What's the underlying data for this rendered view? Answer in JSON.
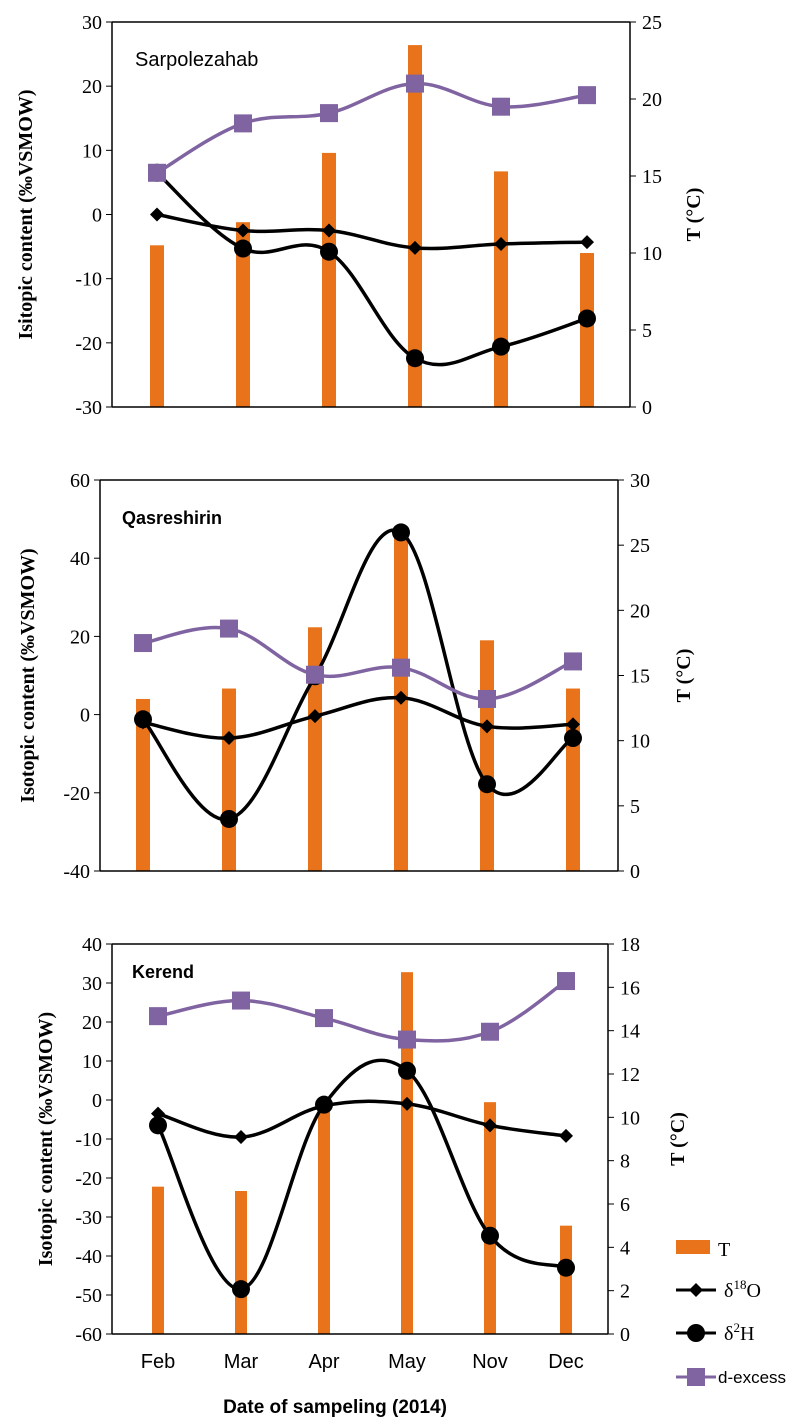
{
  "chart_data": [
    {
      "type": "bar",
      "title": "Sarpolezahab",
      "ylabel": "Isitopic content (‰VSMOW)",
      "y2label": "T (°C)",
      "categories": [
        "Feb",
        "Mar",
        "Apr",
        "May",
        "Nov",
        "Dec"
      ],
      "ylim": [
        -30,
        30
      ],
      "yticks": [
        -30,
        -20,
        -10,
        0,
        10,
        20,
        30
      ],
      "y2lim": [
        0,
        25
      ],
      "y2ticks": [
        0,
        5,
        10,
        15,
        20,
        25
      ],
      "series": [
        {
          "name": "T",
          "type": "bar",
          "axis": "right",
          "color": "#E8731A",
          "values": [
            10.5,
            12,
            16.5,
            23.5,
            15.3,
            10
          ]
        },
        {
          "name": "δ18O",
          "type": "line",
          "axis": "left",
          "marker": "diamond",
          "color": "#000000",
          "values": [
            0,
            -2.5,
            -2.5,
            -5.2,
            -4.6,
            -4.3
          ]
        },
        {
          "name": "δ2H",
          "type": "line",
          "axis": "left",
          "marker": "circle",
          "color": "#000000",
          "values": [
            6.5,
            -5.3,
            -5.8,
            -22.4,
            -20.6,
            -16.2
          ]
        },
        {
          "name": "d-excess",
          "type": "line",
          "axis": "left",
          "marker": "square",
          "color": "#8064A2",
          "values": [
            6.5,
            14.2,
            15.8,
            20.4,
            16.8,
            18.6
          ]
        }
      ]
    },
    {
      "type": "bar",
      "title": "Qasreshirin",
      "ylabel": "Isotopic content (‰VSMOW)",
      "y2label": "T (°C)",
      "categories": [
        "Feb",
        "Mar",
        "Apr",
        "May",
        "Nov",
        "Dec"
      ],
      "ylim": [
        -40,
        60
      ],
      "yticks": [
        -40,
        -20,
        0,
        20,
        40,
        60
      ],
      "y2lim": [
        0,
        30
      ],
      "y2ticks": [
        0,
        5,
        10,
        15,
        20,
        25,
        30
      ],
      "series": [
        {
          "name": "T",
          "type": "bar",
          "axis": "right",
          "color": "#E8731A",
          "values": [
            13.2,
            14,
            18.7,
            26,
            17.7,
            14
          ]
        },
        {
          "name": "δ18O",
          "type": "line",
          "axis": "left",
          "marker": "diamond",
          "color": "#000000",
          "values": [
            -2,
            -6,
            -0.4,
            4.3,
            -3,
            -2.5
          ]
        },
        {
          "name": "δ2H",
          "type": "line",
          "axis": "left",
          "marker": "circle",
          "color": "#000000",
          "values": [
            -1.2,
            -26.7,
            9.8,
            46.6,
            -17.8,
            -6
          ]
        },
        {
          "name": "d-excess",
          "type": "line",
          "axis": "left",
          "marker": "square",
          "color": "#8064A2",
          "values": [
            18.3,
            22,
            10.2,
            12,
            4,
            13.6
          ]
        }
      ]
    },
    {
      "type": "bar",
      "title": "Kerend",
      "ylabel": "Isotopic content (‰VSMOW)",
      "y2label": "T (°C)",
      "categories": [
        "Feb",
        "Mar",
        "Apr",
        "May",
        "Nov",
        "Dec"
      ],
      "ylim": [
        -60,
        40
      ],
      "yticks": [
        -60,
        -50,
        -40,
        -30,
        -20,
        -10,
        0,
        10,
        20,
        30,
        40
      ],
      "y2lim": [
        0,
        18
      ],
      "y2ticks": [
        0,
        2,
        4,
        6,
        8,
        10,
        12,
        14,
        16,
        18
      ],
      "series": [
        {
          "name": "T",
          "type": "bar",
          "axis": "right",
          "color": "#E8731A",
          "values": [
            6.8,
            6.6,
            10.5,
            16.7,
            10.7,
            5
          ]
        },
        {
          "name": "δ18O",
          "type": "line",
          "axis": "left",
          "marker": "diamond",
          "color": "#000000",
          "values": [
            -3.5,
            -9.5,
            -1.5,
            -1,
            -6.5,
            -9.2
          ]
        },
        {
          "name": "δ2H",
          "type": "line",
          "axis": "left",
          "marker": "circle",
          "color": "#000000",
          "values": [
            -6.5,
            -48.5,
            -1.2,
            7.5,
            -34.8,
            -43
          ]
        },
        {
          "name": "d-excess",
          "type": "line",
          "axis": "left",
          "marker": "square",
          "color": "#8064A2",
          "values": [
            21.5,
            25.5,
            21,
            15.5,
            17.5,
            30.5
          ]
        }
      ]
    }
  ],
  "xaxis_title": "Date of sampeling (2014)",
  "legend": {
    "items": [
      {
        "label": "T",
        "marker": "bar",
        "color": "#E8731A"
      },
      {
        "label_main": "δ",
        "label_sup": "18",
        "label_tail": "O",
        "marker": "diamond",
        "color": "#000000"
      },
      {
        "label_main": "δ",
        "label_sup": "2",
        "label_tail": "H",
        "marker": "circle",
        "color": "#000000"
      },
      {
        "label": "d-excess",
        "marker": "square",
        "color": "#8064A2"
      }
    ]
  }
}
